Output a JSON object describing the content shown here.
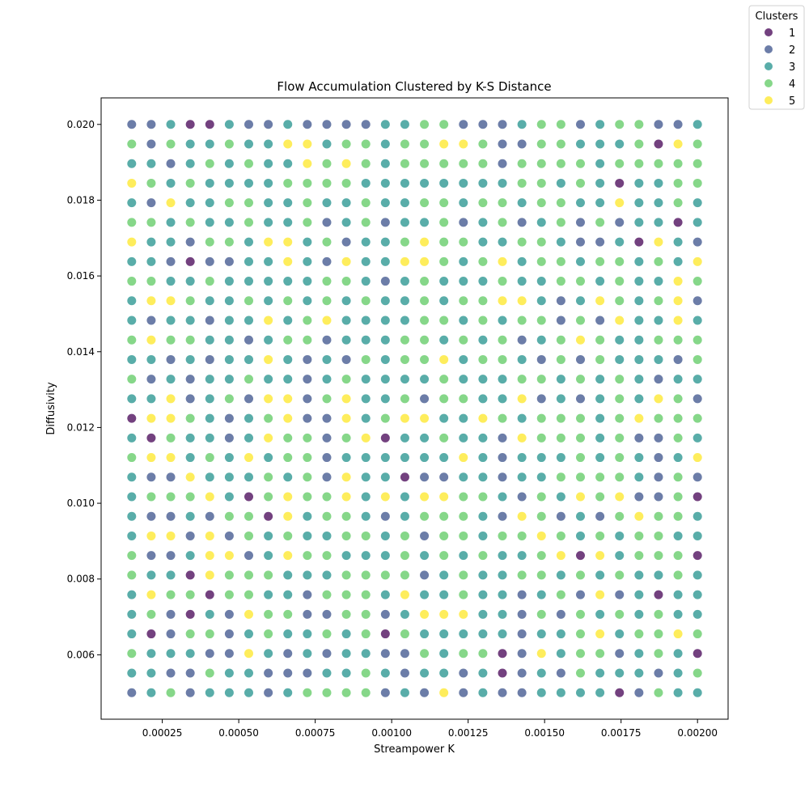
{
  "chart_data": {
    "type": "scatter",
    "title": "Flow Accumulation Clustered by K-S Distance",
    "xlabel": "Streampower K",
    "ylabel": "Diffusivity",
    "xlim": [
      5e-05,
      0.0021
    ],
    "ylim": [
      0.0043,
      0.0207
    ],
    "xticks": [
      0.00025,
      0.0005,
      0.00075,
      0.001,
      0.00125,
      0.0015,
      0.00175,
      0.002
    ],
    "xtick_labels": [
      "0.00025",
      "0.00050",
      "0.00075",
      "0.00100",
      "0.00125",
      "0.00150",
      "0.00175",
      "0.00200"
    ],
    "yticks": [
      0.006,
      0.008,
      0.01,
      0.012,
      0.014,
      0.016,
      0.018,
      0.02
    ],
    "ytick_labels": [
      "0.006",
      "0.008",
      "0.010",
      "0.012",
      "0.014",
      "0.016",
      "0.018",
      "0.020"
    ],
    "grid": false,
    "legend": {
      "title": "Clusters",
      "placement": "top-right outside",
      "entries": [
        "1",
        "2",
        "3",
        "4",
        "5"
      ]
    },
    "cluster_colors": {
      "1": "#440154",
      "2": "#3b528b",
      "3": "#21918c",
      "4": "#5ec962",
      "5": "#fde725"
    },
    "marker_alpha": 0.75,
    "x_grid": {
      "start": 0.00015,
      "end": 0.002,
      "count": 30
    },
    "y_grid": {
      "start": 0.005,
      "end": 0.02,
      "count": 30
    },
    "cluster_rows_top_to_bottom": [
      "223113223222233442223442344223",
      "424334335534434455422443334154",
      "332343433545434444424444344444",
      "543433334444333333334434313344",
      "325334433433433443443443353343",
      "443433433423423342342342423313",
      "533244355342334544334432231532",
      "332122335325335543453443443435",
      "443343333344323433343344343354",
      "355433434343433434455323543452",
      "323323353453333443434424253353",
      "454433234423334434342345433444",
      "332323353232434453443242433324",
      "423233433234333343334434343233",
      "335234255245334244335232343542",
      "155432345225345533543444345444",
      "314332354424513343325444342243",
      "455343534423333335323334343235",
      "322533343425331223323344443242",
      "344453145445353554432435452241",
      "322324415344323444325423245443",
      "355252434334434244344543434433",
      "422355235443334343433451534441",
      "433154443334444234334434343343",
      "354414433244435334332342523133",
      "342132544224423555332424343433",
      "312442343343414333332334534454",
      "433322532323322434412534423431",
      "332243322233432332312324333234",
      "234233323444423252322333312433"
    ]
  }
}
